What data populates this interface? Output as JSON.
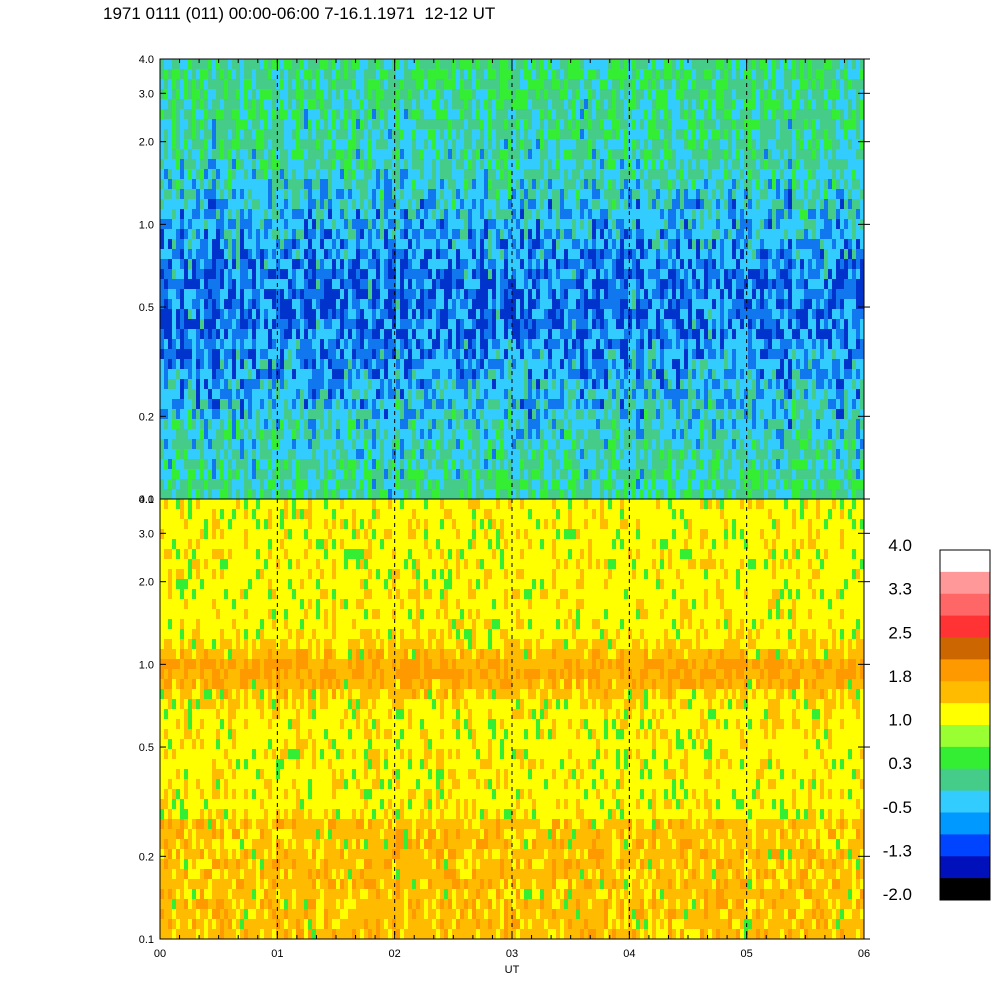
{
  "title": "1971 0111 (011) 00:00-06:00 7-16.1.1971  12-12 UT",
  "chart_data": [
    {
      "type": "heatmap",
      "panel": "upper",
      "ytick_labels": [
        "0.1",
        "0.2",
        "0.5",
        "1.0",
        "2.0",
        "3.0",
        "4.0"
      ],
      "ylim": [
        0.1,
        4.0
      ],
      "yscale": "log",
      "xlim": [
        0,
        6
      ],
      "dominant_colors": [
        "#33ee33",
        "#44cc88",
        "#33ccff",
        "#1177ee",
        "#0033cc"
      ]
    },
    {
      "type": "heatmap",
      "panel": "lower",
      "ytick_labels": [
        "0.1",
        "0.2",
        "0.5",
        "1.0",
        "2.0",
        "3.0",
        "4.0"
      ],
      "ylim": [
        0.1,
        4.0
      ],
      "yscale": "log",
      "xlim": [
        0,
        6
      ],
      "xtick_labels": [
        "00",
        "01",
        "02",
        "03",
        "04",
        "05",
        "06"
      ],
      "xlabel": "UT",
      "dominant_colors": [
        "#ffff00",
        "#ffbb00",
        "#ff9900",
        "#33ee33"
      ]
    }
  ],
  "colorbar": {
    "labels": [
      "4.0",
      "3.3",
      "2.5",
      "1.8",
      "1.0",
      "0.3",
      "-0.5",
      "-1.3",
      "-2.0"
    ],
    "colors": [
      "#ffffff",
      "#ff9999",
      "#ff6666",
      "#ff3333",
      "#cc6600",
      "#ff9900",
      "#ffbb00",
      "#ffff00",
      "#99ff33",
      "#33ee33",
      "#44cc88",
      "#33ccff",
      "#0099ff",
      "#0044ff",
      "#0011bb",
      "#000000"
    ]
  }
}
